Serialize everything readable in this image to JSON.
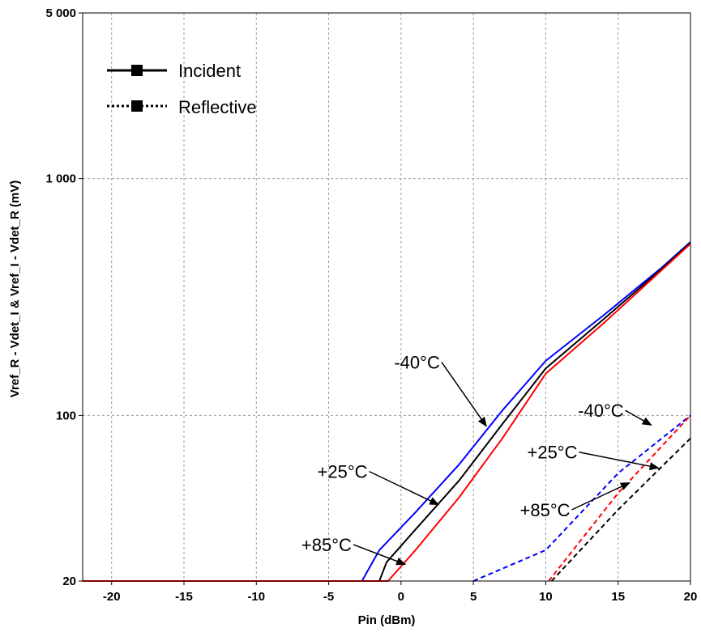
{
  "chart_data": {
    "type": "line",
    "title": "",
    "xlabel": "Pin (dBm)",
    "ylabel": "Vref_R - Vdet_I & Vref_I - Vdet_R (mV)",
    "xlim": [
      -22,
      20
    ],
    "ylim": [
      20,
      5000
    ],
    "yscale": "log",
    "grid": true,
    "x_ticks": [
      -20,
      -15,
      -10,
      -5,
      0,
      5,
      10,
      15,
      20
    ],
    "x_tick_labels": [
      "-20",
      "-15",
      "-10",
      "-5",
      "0",
      "5",
      "10",
      "15",
      "20"
    ],
    "y_ticks": [
      20,
      100,
      1000,
      5000
    ],
    "y_tick_labels": [
      "20",
      "100",
      "1 000",
      "5 000"
    ],
    "legend": {
      "position": "top-left",
      "entries": [
        {
          "label": "Incident",
          "style": "solid"
        },
        {
          "label": "Reflective",
          "style": "dotted"
        }
      ]
    },
    "series": [
      {
        "group": "incident",
        "temp": "-40°C",
        "color": "#0000ff",
        "dash": "solid",
        "points": [
          [
            -2.7,
            20
          ],
          [
            -1.5,
            27
          ],
          [
            1,
            39
          ],
          [
            4,
            62
          ],
          [
            7,
            105
          ],
          [
            10,
            170
          ],
          [
            14,
            265
          ],
          [
            18,
            420
          ],
          [
            20,
            540
          ]
        ]
      },
      {
        "group": "incident",
        "temp": "+25°C",
        "color": "#000000",
        "dash": "solid",
        "points": [
          [
            -1.5,
            20
          ],
          [
            -1,
            24
          ],
          [
            1,
            33
          ],
          [
            4,
            53
          ],
          [
            7,
            92
          ],
          [
            10,
            158
          ],
          [
            14,
            255
          ],
          [
            18,
            415
          ],
          [
            20,
            535
          ]
        ]
      },
      {
        "group": "incident",
        "temp": "+85°C",
        "color": "#ff0000",
        "dash": "solid",
        "points": [
          [
            -22,
            20
          ],
          [
            -13.8,
            20
          ],
          [
            -0.9,
            20
          ],
          [
            1,
            27
          ],
          [
            4,
            45
          ],
          [
            7,
            80
          ],
          [
            10,
            150
          ],
          [
            14,
            245
          ],
          [
            18,
            410
          ],
          [
            20,
            530
          ]
        ]
      },
      {
        "group": "reflective",
        "temp": "-40°C",
        "color": "#0000ff",
        "dash": "dashed",
        "points": [
          [
            5,
            20
          ],
          [
            10,
            27
          ],
          [
            15,
            57
          ],
          [
            20,
            100
          ]
        ]
      },
      {
        "group": "reflective",
        "temp": "+25°C",
        "color": "#ff0000",
        "dash": "dashed",
        "points": [
          [
            10.2,
            20
          ],
          [
            15,
            47
          ],
          [
            20,
            100
          ]
        ]
      },
      {
        "group": "reflective",
        "temp": "+85°C",
        "color": "#000000",
        "dash": "dashed",
        "points": [
          [
            10.4,
            20
          ],
          [
            15,
            40
          ],
          [
            20,
            80
          ]
        ]
      }
    ],
    "annotations": [
      {
        "text": "-40°C",
        "anchor": [
          2.8,
          168
        ],
        "arrow_to": [
          5.9,
          90
        ]
      },
      {
        "text": "+25°C",
        "anchor": [
          -2.2,
          58
        ],
        "arrow_to": [
          2.6,
          42
        ]
      },
      {
        "text": "+85°C",
        "anchor": [
          -3.3,
          28.5
        ],
        "arrow_to": [
          0.3,
          23.5
        ]
      },
      {
        "text": "-40°C",
        "anchor": [
          15.5,
          105
        ],
        "arrow_to": [
          17.3,
          91
        ]
      },
      {
        "text": "+25°C",
        "anchor": [
          12.3,
          70
        ],
        "arrow_to": [
          17.8,
          60
        ]
      },
      {
        "text": "+85°C",
        "anchor": [
          11.8,
          40
        ],
        "arrow_to": [
          15.8,
          52
        ]
      }
    ]
  }
}
